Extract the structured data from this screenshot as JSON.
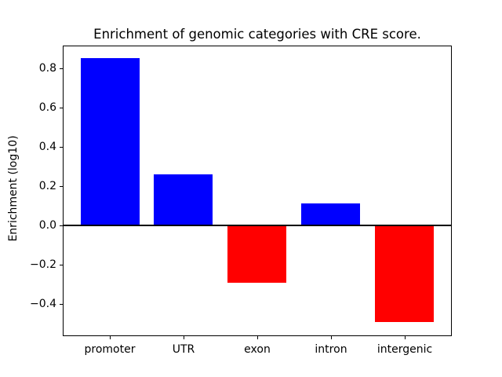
{
  "chart_data": {
    "type": "bar",
    "title": "Enrichment of genomic categories with CRE score.",
    "xlabel": "",
    "ylabel": "Enrichment (log10)",
    "categories": [
      "promoter",
      "UTR",
      "exon",
      "intron",
      "intergenic"
    ],
    "values": [
      0.85,
      0.26,
      -0.29,
      0.11,
      -0.49
    ],
    "bar_width": 0.8,
    "positive_color": "#0000ff",
    "negative_color": "#ff0000",
    "ylim": [
      -0.565,
      0.914
    ],
    "xlim": [
      -0.64,
      4.64
    ],
    "yticks": [
      0.8,
      0.6,
      0.4,
      0.2,
      0.0,
      -0.2,
      -0.4
    ],
    "ytick_labels": [
      "0.8",
      "0.6",
      "0.4",
      "0.2",
      "0.0",
      "−0.2",
      "−0.4"
    ],
    "zero_line": true,
    "grid": false,
    "legend": false,
    "background_color": "#ffffff",
    "text_color": "#000000"
  }
}
